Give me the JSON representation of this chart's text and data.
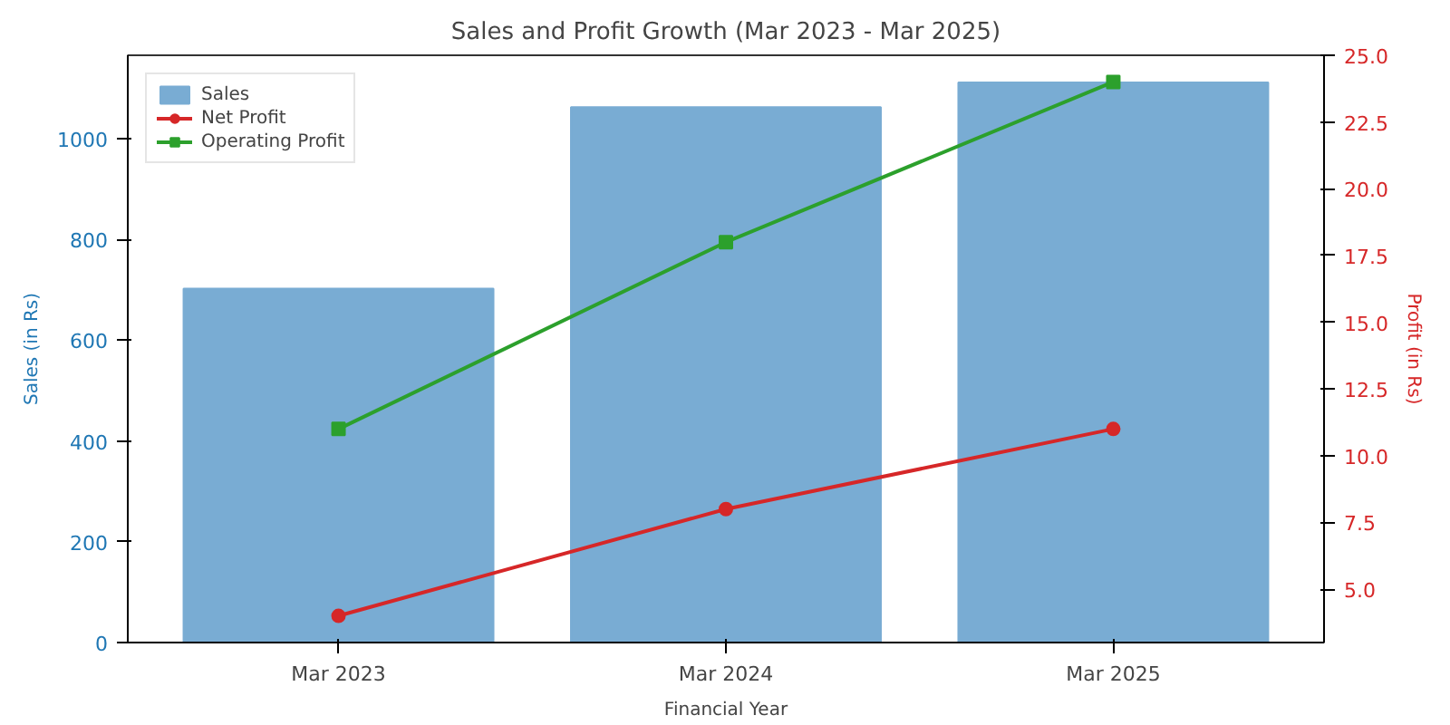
{
  "chart_data": {
    "type": "bar",
    "title": "Sales and Profit Growth (Mar 2023 - Mar 2025)",
    "xlabel": "Financial Year",
    "ylabel": "Sales (in Rs)",
    "y2label": "Profit (in Rs)",
    "categories": [
      "Mar 2023",
      "Mar 2024",
      "Mar 2025"
    ],
    "series": [
      {
        "name": "Sales",
        "color": "#79acd3",
        "values": [
          702,
          1062,
          1111
        ]
      },
      {
        "name": "Net Profit",
        "type": "line",
        "axis": "y2",
        "marker": "circle",
        "color": "#d62728",
        "values": [
          4,
          8,
          11
        ]
      },
      {
        "name": "Operating Profit",
        "type": "line",
        "axis": "y2",
        "marker": "square",
        "color": "#2ca02c",
        "values": [
          11,
          18,
          24
        ]
      }
    ],
    "ylim": [
      0,
      1165
    ],
    "yticks": [
      0,
      200,
      400,
      600,
      800,
      1000
    ],
    "y2lim": [
      3,
      25
    ],
    "y2ticks": [
      {
        "value": 5,
        "label": "5.0"
      },
      {
        "value": 7.5,
        "label": "7.5"
      },
      {
        "value": 10,
        "label": "10.0"
      },
      {
        "value": 12.5,
        "label": "12.5"
      },
      {
        "value": 15,
        "label": "15.0"
      },
      {
        "value": 17.5,
        "label": "17.5"
      },
      {
        "value": 20,
        "label": "20.0"
      },
      {
        "value": 22.5,
        "label": "22.5"
      },
      {
        "value": 25,
        "label": "25.0"
      }
    ],
    "grid": false,
    "legend": "top left"
  }
}
